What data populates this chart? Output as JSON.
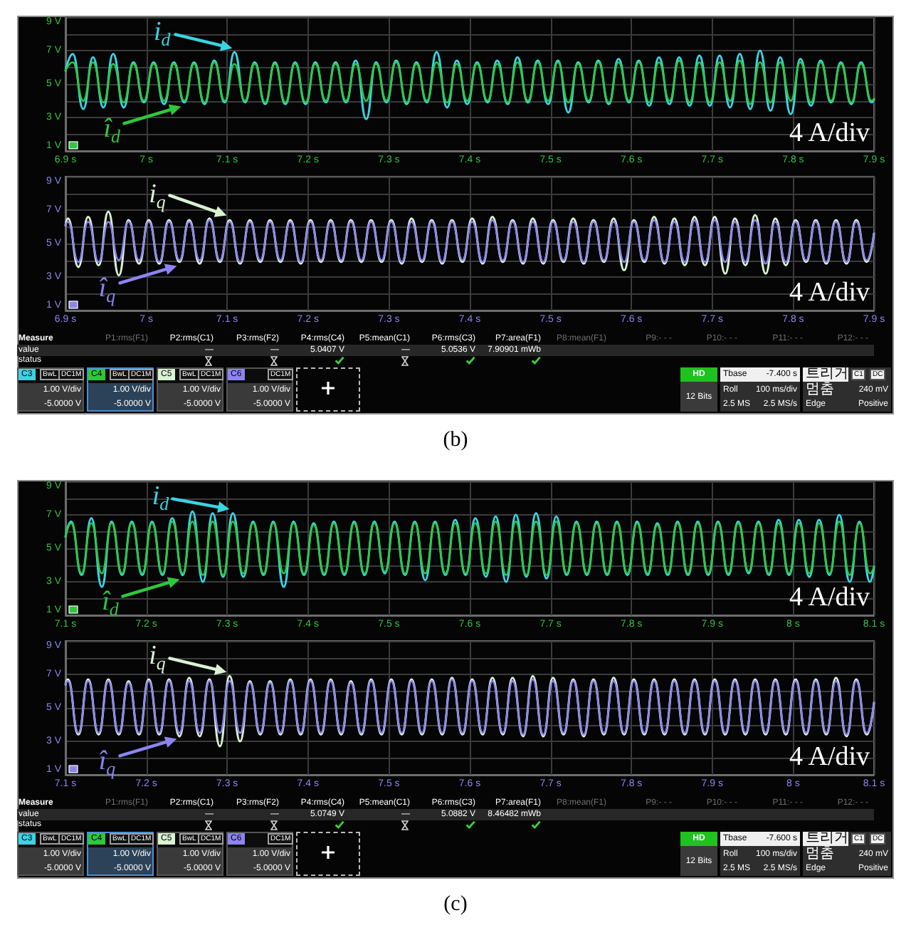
{
  "chart_data": [
    {
      "type": "line",
      "x": [
        6.9,
        6.909,
        6.922,
        6.934,
        6.947,
        6.959,
        6.972,
        6.984,
        6.997,
        7.009,
        7.022,
        7.034,
        7.047,
        7.059,
        7.072,
        7.084,
        7.097,
        7.109,
        7.122,
        7.134,
        7.147,
        7.159,
        7.172,
        7.184,
        7.197,
        7.209,
        7.222,
        7.234,
        7.247,
        7.259,
        7.272,
        7.284,
        7.297,
        7.309,
        7.322,
        7.334,
        7.347,
        7.359,
        7.372,
        7.384,
        7.397,
        7.409,
        7.422,
        7.434,
        7.447,
        7.459,
        7.472,
        7.484,
        7.497,
        7.509,
        7.522,
        7.534,
        7.547,
        7.559,
        7.572,
        7.584,
        7.597,
        7.609,
        7.622,
        7.634,
        7.647,
        7.659,
        7.672,
        7.684,
        7.697,
        7.709,
        7.722,
        7.734,
        7.747,
        7.759,
        7.772,
        7.784,
        7.797,
        7.809,
        7.822,
        7.834,
        7.847,
        7.859,
        7.872,
        7.884,
        7.897,
        7.9
      ],
      "series": [
        {
          "name": "i$_{d}$",
          "color": "#3ad4e4",
          "values": [
            5.8,
            6.8,
            3.5,
            6.6,
            3.6,
            6.8,
            3.6,
            6.3,
            3.9,
            6.3,
            3.8,
            6.3,
            3.9,
            6.3,
            3.8,
            6.4,
            3.9,
            6.9,
            3.9,
            6.3,
            3.8,
            6.3,
            3.8,
            6.3,
            3.8,
            6.3,
            3.9,
            6.3,
            3.9,
            6.4,
            2.9,
            6.3,
            3.9,
            6.4,
            3.8,
            6.3,
            3.9,
            6.9,
            3.6,
            6.4,
            3.8,
            6.3,
            3.9,
            6.4,
            3.8,
            6.6,
            3.9,
            6.4,
            3.8,
            6.4,
            3.3,
            6.3,
            3.9,
            6.4,
            3.8,
            6.5,
            3.9,
            6.4,
            3.7,
            6.6,
            3.8,
            6.6,
            3.7,
            6.7,
            3.7,
            6.7,
            3.6,
            6.8,
            3.5,
            7.0,
            3.4,
            6.6,
            3.2,
            6.5,
            3.7,
            6.4,
            3.9,
            6.3,
            3.8,
            6.3,
            3.9,
            4.1
          ]
        },
        {
          "name": "î$_{d}$",
          "color": "#2ec83c",
          "values": [
            5.8,
            6.3,
            4.0,
            6.3,
            3.9,
            6.2,
            3.9,
            6.2,
            4.0,
            6.2,
            4.0,
            6.2,
            4.0,
            6.2,
            3.9,
            6.3,
            4.0,
            6.2,
            4.0,
            6.2,
            3.9,
            6.2,
            3.9,
            6.2,
            3.9,
            6.2,
            4.0,
            6.2,
            4.0,
            6.2,
            4.0,
            6.2,
            4.0,
            6.3,
            3.9,
            6.2,
            4.0,
            6.3,
            3.9,
            6.2,
            4.0,
            6.2,
            4.0,
            6.2,
            3.9,
            6.3,
            4.0,
            6.3,
            4.0,
            6.3,
            3.9,
            6.2,
            4.0,
            6.3,
            3.9,
            6.3,
            4.0,
            6.3,
            3.9,
            6.3,
            4.0,
            6.4,
            3.9,
            6.3,
            3.9,
            6.3,
            4.0,
            6.4,
            3.8,
            6.3,
            3.9,
            6.3,
            4.0,
            6.3,
            3.9,
            6.3,
            4.0,
            6.2,
            3.9,
            6.2,
            4.0,
            4.1
          ]
        }
      ],
      "xlim": [
        6.9,
        7.9
      ],
      "xticks": [
        {
          "value": 6.9,
          "label": "6.9 s"
        },
        {
          "value": 7,
          "label": "7 s"
        },
        {
          "value": 7.1,
          "label": "7.1 s"
        },
        {
          "value": 7.2,
          "label": "7.2 s"
        },
        {
          "value": 7.3,
          "label": "7.3 s"
        },
        {
          "value": 7.4,
          "label": "7.4 s"
        },
        {
          "value": 7.5,
          "label": "7.5 s"
        },
        {
          "value": 7.6,
          "label": "7.6 s"
        },
        {
          "value": 7.7,
          "label": "7.7 s"
        },
        {
          "value": 7.8,
          "label": "7.8 s"
        },
        {
          "value": 7.9,
          "label": "7.9 s"
        }
      ],
      "ylim": [
        1,
        9
      ],
      "yticks": [
        {
          "value": 1,
          "label": "1 V"
        },
        {
          "value": 2,
          "label": null
        },
        {
          "value": 3,
          "label": "3 V"
        },
        {
          "value": 4,
          "label": null
        },
        {
          "value": 5,
          "label": "5 V"
        },
        {
          "value": 6,
          "label": null
        },
        {
          "value": 7,
          "label": "7 V"
        },
        {
          "value": 8,
          "label": null
        },
        {
          "value": 9,
          "label": "9 V"
        }
      ],
      "grid": true,
      "legend": "left",
      "marker": "none",
      "line_style": "solid",
      "annotations": [
        "4 A/div"
      ]
    },
    {
      "type": "line",
      "x": [
        6.9,
        6.903,
        6.916,
        6.928,
        6.941,
        6.953,
        6.966,
        6.978,
        6.991,
        7.003,
        7.016,
        7.028,
        7.041,
        7.053,
        7.066,
        7.078,
        7.091,
        7.103,
        7.116,
        7.128,
        7.141,
        7.153,
        7.166,
        7.178,
        7.191,
        7.203,
        7.216,
        7.228,
        7.241,
        7.253,
        7.266,
        7.278,
        7.291,
        7.303,
        7.316,
        7.328,
        7.341,
        7.353,
        7.366,
        7.378,
        7.391,
        7.403,
        7.416,
        7.428,
        7.441,
        7.453,
        7.466,
        7.478,
        7.491,
        7.503,
        7.516,
        7.528,
        7.541,
        7.553,
        7.566,
        7.578,
        7.591,
        7.603,
        7.616,
        7.628,
        7.641,
        7.653,
        7.666,
        7.678,
        7.691,
        7.703,
        7.716,
        7.728,
        7.741,
        7.753,
        7.766,
        7.778,
        7.791,
        7.803,
        7.816,
        7.828,
        7.841,
        7.853,
        7.866,
        7.878,
        7.891,
        7.9
      ],
      "series": [
        {
          "name": "i$_{q}$",
          "color": "#d8f2d2",
          "values": [
            6.1,
            6.5,
            3.6,
            6.6,
            3.7,
            6.9,
            3.1,
            6.4,
            3.8,
            6.4,
            3.8,
            6.4,
            3.9,
            6.4,
            3.8,
            6.5,
            3.9,
            6.4,
            3.8,
            6.4,
            3.9,
            6.4,
            3.9,
            6.4,
            3.8,
            6.4,
            3.9,
            6.4,
            3.9,
            6.4,
            3.9,
            6.4,
            3.9,
            6.4,
            3.8,
            6.5,
            3.9,
            6.4,
            3.8,
            6.4,
            3.9,
            6.5,
            3.8,
            6.6,
            3.9,
            6.4,
            3.8,
            6.5,
            3.8,
            6.4,
            3.9,
            6.5,
            3.8,
            6.4,
            3.9,
            6.5,
            3.4,
            6.4,
            3.9,
            6.6,
            3.8,
            6.5,
            3.7,
            6.6,
            3.7,
            6.6,
            3.2,
            6.5,
            3.7,
            6.7,
            3.2,
            6.5,
            3.7,
            6.4,
            3.9,
            6.4,
            3.8,
            6.4,
            3.8,
            6.4,
            3.9,
            5.6
          ]
        },
        {
          "name": "î$_{q}$",
          "color": "#8d84f2",
          "values": [
            6.1,
            6.3,
            3.9,
            6.3,
            3.9,
            6.3,
            4.0,
            6.3,
            4.0,
            6.3,
            3.9,
            6.3,
            4.0,
            6.3,
            4.0,
            6.4,
            4.0,
            6.3,
            3.9,
            6.3,
            4.0,
            6.3,
            4.0,
            6.3,
            3.9,
            6.3,
            4.0,
            6.3,
            4.0,
            6.3,
            4.0,
            6.3,
            4.0,
            6.3,
            3.9,
            6.3,
            4.0,
            6.3,
            3.9,
            6.3,
            4.0,
            6.3,
            3.9,
            6.4,
            4.0,
            6.3,
            3.9,
            6.3,
            3.9,
            6.3,
            4.0,
            6.3,
            3.9,
            6.3,
            4.0,
            6.3,
            3.9,
            6.3,
            4.0,
            6.4,
            3.9,
            6.3,
            3.9,
            6.4,
            3.9,
            6.4,
            3.9,
            6.3,
            3.9,
            6.4,
            3.8,
            6.3,
            3.9,
            6.3,
            4.0,
            6.3,
            3.9,
            6.3,
            3.9,
            6.3,
            4.0,
            5.6
          ]
        }
      ],
      "xlim": [
        6.9,
        7.9
      ],
      "xticks": [
        {
          "value": 6.9,
          "label": "6.9 s"
        },
        {
          "value": 7,
          "label": "7 s"
        },
        {
          "value": 7.1,
          "label": "7.1 s"
        },
        {
          "value": 7.2,
          "label": "7.2 s"
        },
        {
          "value": 7.3,
          "label": "7.3 s"
        },
        {
          "value": 7.4,
          "label": "7.4 s"
        },
        {
          "value": 7.5,
          "label": "7.5 s"
        },
        {
          "value": 7.6,
          "label": "7.6 s"
        },
        {
          "value": 7.7,
          "label": "7.7 s"
        },
        {
          "value": 7.8,
          "label": "7.8 s"
        },
        {
          "value": 7.9,
          "label": "7.9 s"
        }
      ],
      "ylim": [
        1,
        9
      ],
      "yticks": [
        {
          "value": 1,
          "label": "1 V"
        },
        {
          "value": 2,
          "label": null
        },
        {
          "value": 3,
          "label": "3 V"
        },
        {
          "value": 4,
          "label": null
        },
        {
          "value": 5,
          "label": "5 V"
        },
        {
          "value": 6,
          "label": null
        },
        {
          "value": 7,
          "label": "7 V"
        },
        {
          "value": 8,
          "label": null
        },
        {
          "value": 9,
          "label": "9 V"
        }
      ],
      "grid": true,
      "legend": "left",
      "marker": "none",
      "line_style": "solid",
      "annotations": [
        "4 A/div"
      ]
    },
    {
      "type": "other",
      "annotations": [
        "Measure",
        "P1:rms(F1)",
        "P2:rms(C1)",
        "P3:rms(F2)",
        "P4:rms(C4)",
        "P5:mean(C1)",
        "P6:rms(C3)",
        "P7:area(F1)",
        "P8:mean(F1)",
        "P9:- - -",
        "P10:- - -",
        "P11:- - -",
        "P12:- - -",
        "value",
        "status",
        "—",
        "—",
        "5.0407 V",
        "—",
        "5.0536 V",
        "7.90901 mWb",
        "C3",
        "BwL",
        "DC1M",
        "1.00 V/div",
        "-5.0000 V",
        "C4",
        "BwL",
        "DC1M",
        "1.00 V/div",
        "-5.0000 V",
        "C5",
        "BwL",
        "DC1M",
        "1.00 V/div",
        "-5.0000 V",
        "C6",
        "DC1M",
        "1.00 V/div",
        "-5.0000 V",
        "HD",
        "12 Bits",
        "Tbase",
        "-7.400 s",
        "Roll",
        "100 ms/div",
        "2.5 MS",
        "2.5 MS/s",
        "트리거",
        "C1",
        "DC",
        "멈춤",
        "240 mV",
        "Edge",
        "Positive",
        "(b)"
      ]
    },
    {
      "type": "line",
      "x": [
        7.1,
        7.107,
        7.12,
        7.132,
        7.145,
        7.157,
        7.17,
        7.182,
        7.195,
        7.207,
        7.22,
        7.232,
        7.245,
        7.257,
        7.27,
        7.282,
        7.295,
        7.307,
        7.32,
        7.332,
        7.345,
        7.357,
        7.37,
        7.382,
        7.395,
        7.407,
        7.42,
        7.432,
        7.445,
        7.457,
        7.47,
        7.482,
        7.495,
        7.507,
        7.52,
        7.532,
        7.545,
        7.557,
        7.57,
        7.582,
        7.595,
        7.607,
        7.62,
        7.632,
        7.645,
        7.657,
        7.67,
        7.682,
        7.695,
        7.707,
        7.72,
        7.732,
        7.745,
        7.757,
        7.77,
        7.782,
        7.795,
        7.807,
        7.82,
        7.832,
        7.845,
        7.857,
        7.87,
        7.882,
        7.895,
        7.907,
        7.92,
        7.932,
        7.945,
        7.957,
        7.97,
        7.982,
        7.995,
        8.007,
        8.02,
        8.032,
        8.045,
        8.057,
        8.07,
        8.082,
        8.095,
        8.1
      ],
      "series": [
        {
          "name": "i$_{d}$",
          "color": "#3ad4e4",
          "values": [
            5.7,
            6.6,
            3.4,
            6.8,
            2.7,
            6.6,
            3.4,
            6.6,
            3.4,
            6.6,
            3.4,
            6.8,
            3.4,
            7.2,
            3.0,
            7.1,
            3.3,
            7.1,
            3.3,
            6.6,
            3.4,
            6.6,
            2.7,
            6.6,
            3.4,
            6.5,
            3.4,
            6.6,
            3.4,
            6.6,
            3.4,
            6.6,
            3.5,
            6.6,
            3.4,
            6.6,
            3.1,
            6.6,
            3.4,
            6.7,
            3.4,
            6.8,
            3.3,
            6.9,
            3.0,
            7.0,
            3.3,
            7.1,
            3.2,
            6.9,
            3.4,
            6.6,
            3.4,
            6.6,
            3.4,
            6.6,
            3.4,
            6.6,
            3.4,
            6.5,
            3.4,
            6.6,
            3.4,
            6.6,
            3.4,
            6.6,
            3.4,
            6.6,
            3.5,
            6.6,
            3.4,
            6.7,
            3.4,
            6.7,
            3.3,
            6.7,
            3.4,
            7.0,
            3.0,
            6.6,
            3.0,
            3.9
          ]
        },
        {
          "name": "î$_{d}$",
          "color": "#2ec83c",
          "values": [
            5.7,
            6.5,
            3.5,
            6.5,
            3.5,
            6.5,
            3.5,
            6.5,
            3.5,
            6.5,
            3.5,
            6.6,
            3.5,
            6.6,
            3.4,
            6.6,
            3.4,
            6.6,
            3.5,
            6.5,
            3.5,
            6.5,
            3.5,
            6.5,
            3.5,
            6.4,
            3.5,
            6.5,
            3.5,
            6.5,
            3.5,
            6.5,
            3.6,
            6.5,
            3.5,
            6.5,
            3.5,
            6.5,
            3.5,
            6.5,
            3.5,
            6.5,
            3.5,
            6.6,
            3.4,
            6.6,
            3.4,
            6.6,
            3.4,
            6.6,
            3.5,
            6.5,
            3.5,
            6.5,
            3.5,
            6.5,
            3.5,
            6.5,
            3.5,
            6.4,
            3.5,
            6.5,
            3.5,
            6.5,
            3.5,
            6.5,
            3.5,
            6.5,
            3.6,
            6.5,
            3.5,
            6.5,
            3.5,
            6.5,
            3.5,
            6.5,
            3.5,
            6.6,
            3.4,
            6.5,
            3.5,
            3.9
          ]
        }
      ],
      "xlim": [
        7.1,
        8.1
      ],
      "xticks": [
        {
          "value": 7.1,
          "label": "7.1 s"
        },
        {
          "value": 7.2,
          "label": "7.2 s"
        },
        {
          "value": 7.3,
          "label": "7.3 s"
        },
        {
          "value": 7.4,
          "label": "7.4 s"
        },
        {
          "value": 7.5,
          "label": "7.5 s"
        },
        {
          "value": 7.6,
          "label": "7.6 s"
        },
        {
          "value": 7.7,
          "label": "7.7 s"
        },
        {
          "value": 7.8,
          "label": "7.8 s"
        },
        {
          "value": 7.9,
          "label": "7.9 s"
        },
        {
          "value": 8,
          "label": "8 s"
        },
        {
          "value": 8.1,
          "label": "8.1 s"
        }
      ],
      "ylim": [
        1,
        9
      ],
      "yticks": [
        {
          "value": 1,
          "label": "1 V"
        },
        {
          "value": 2,
          "label": null
        },
        {
          "value": 3,
          "label": "3 V"
        },
        {
          "value": 4,
          "label": null
        },
        {
          "value": 5,
          "label": "5 V"
        },
        {
          "value": 6,
          "label": null
        },
        {
          "value": 7,
          "label": "7 V"
        },
        {
          "value": 8,
          "label": null
        },
        {
          "value": 9,
          "label": "9 V"
        }
      ],
      "grid": true,
      "legend": "left",
      "marker": "none",
      "line_style": "solid",
      "annotations": [
        "4 A/div"
      ]
    },
    {
      "type": "line",
      "x": [
        7.1,
        7.103,
        7.116,
        7.128,
        7.141,
        7.153,
        7.166,
        7.178,
        7.191,
        7.203,
        7.216,
        7.228,
        7.241,
        7.253,
        7.266,
        7.278,
        7.291,
        7.303,
        7.316,
        7.328,
        7.341,
        7.353,
        7.366,
        7.378,
        7.391,
        7.403,
        7.416,
        7.428,
        7.441,
        7.453,
        7.466,
        7.478,
        7.491,
        7.503,
        7.516,
        7.528,
        7.541,
        7.553,
        7.566,
        7.578,
        7.591,
        7.603,
        7.616,
        7.628,
        7.641,
        7.653,
        7.666,
        7.678,
        7.691,
        7.703,
        7.716,
        7.728,
        7.741,
        7.753,
        7.766,
        7.778,
        7.791,
        7.803,
        7.816,
        7.828,
        7.841,
        7.853,
        7.866,
        7.878,
        7.891,
        7.903,
        7.916,
        7.928,
        7.941,
        7.953,
        7.966,
        7.978,
        7.991,
        8.003,
        8.016,
        8.028,
        8.041,
        8.053,
        8.066,
        8.078,
        8.091,
        8.1
      ],
      "series": [
        {
          "name": "i$_{q}$",
          "color": "#d8f2d2",
          "values": [
            6.4,
            6.7,
            3.4,
            6.7,
            3.4,
            6.7,
            3.4,
            6.6,
            3.4,
            6.7,
            3.4,
            6.7,
            3.3,
            6.8,
            3.3,
            6.7,
            2.7,
            6.9,
            3.0,
            6.6,
            3.4,
            6.6,
            3.4,
            6.7,
            3.4,
            6.7,
            3.4,
            6.7,
            3.4,
            6.6,
            3.4,
            6.7,
            3.4,
            6.7,
            3.4,
            6.7,
            3.4,
            6.7,
            3.4,
            6.8,
            3.4,
            6.7,
            3.4,
            6.8,
            3.4,
            6.8,
            3.3,
            6.9,
            3.3,
            6.8,
            3.4,
            6.7,
            3.3,
            6.7,
            3.4,
            6.8,
            3.4,
            6.7,
            3.4,
            6.7,
            3.4,
            6.7,
            3.4,
            6.7,
            3.4,
            6.7,
            3.4,
            6.7,
            3.4,
            6.7,
            3.4,
            6.7,
            3.4,
            6.7,
            3.4,
            6.7,
            3.4,
            6.8,
            3.3,
            6.7,
            3.4,
            5.3
          ]
        },
        {
          "name": "î$_{q}$",
          "color": "#8d84f2",
          "values": [
            6.4,
            6.6,
            3.5,
            6.6,
            3.5,
            6.6,
            3.5,
            6.5,
            3.5,
            6.6,
            3.5,
            6.6,
            3.5,
            6.6,
            3.5,
            6.6,
            3.5,
            6.6,
            3.5,
            6.5,
            3.5,
            6.5,
            3.5,
            6.6,
            3.5,
            6.6,
            3.5,
            6.6,
            3.5,
            6.5,
            3.5,
            6.6,
            3.5,
            6.6,
            3.5,
            6.6,
            3.5,
            6.6,
            3.5,
            6.7,
            3.5,
            6.6,
            3.5,
            6.6,
            3.5,
            6.6,
            3.4,
            6.7,
            3.4,
            6.6,
            3.5,
            6.6,
            3.4,
            6.6,
            3.5,
            6.6,
            3.5,
            6.6,
            3.5,
            6.6,
            3.5,
            6.6,
            3.5,
            6.6,
            3.5,
            6.6,
            3.5,
            6.6,
            3.5,
            6.6,
            3.5,
            6.6,
            3.5,
            6.6,
            3.5,
            6.6,
            3.5,
            6.6,
            3.4,
            6.6,
            3.5,
            5.3
          ]
        }
      ],
      "xlim": [
        7.1,
        8.1
      ],
      "xticks": [
        {
          "value": 7.1,
          "label": "7.1 s"
        },
        {
          "value": 7.2,
          "label": "7.2 s"
        },
        {
          "value": 7.3,
          "label": "7.3 s"
        },
        {
          "value": 7.4,
          "label": "7.4 s"
        },
        {
          "value": 7.5,
          "label": "7.5 s"
        },
        {
          "value": 7.6,
          "label": "7.6 s"
        },
        {
          "value": 7.7,
          "label": "7.7 s"
        },
        {
          "value": 7.8,
          "label": "7.8 s"
        },
        {
          "value": 7.9,
          "label": "7.9 s"
        },
        {
          "value": 8,
          "label": "8 s"
        },
        {
          "value": 8.1,
          "label": "8.1 s"
        }
      ],
      "ylim": [
        1,
        9
      ],
      "yticks": [
        {
          "value": 1,
          "label": "1 V"
        },
        {
          "value": 2,
          "label": null
        },
        {
          "value": 3,
          "label": "3 V"
        },
        {
          "value": 4,
          "label": null
        },
        {
          "value": 5,
          "label": "5 V"
        },
        {
          "value": 6,
          "label": null
        },
        {
          "value": 7,
          "label": "7 V"
        },
        {
          "value": 8,
          "label": null
        },
        {
          "value": 9,
          "label": "9 V"
        }
      ],
      "grid": true,
      "legend": "left",
      "marker": "none",
      "line_style": "solid",
      "annotations": [
        "4 A/div"
      ]
    },
    {
      "type": "other",
      "annotations": [
        "Measure",
        "P1:rms(F1)",
        "P2:rms(C1)",
        "P3:rms(F2)",
        "P4:rms(C4)",
        "P5:mean(C1)",
        "P6:rms(C3)",
        "P7:area(F1)",
        "P8:mean(F1)",
        "P9:- - -",
        "P10:- - -",
        "P11:- - -",
        "P12:- - -",
        "value",
        "status",
        "—",
        "—",
        "5.0749 V",
        "—",
        "5.0882 V",
        "8.46482 mWb",
        "C3",
        "BwL",
        "DC1M",
        "1.00 V/div",
        "-5.0000 V",
        "C4",
        "BwL",
        "DC1M",
        "1.00 V/div",
        "-5.0000 V",
        "C5",
        "BwL",
        "DC1M",
        "1.00 V/div",
        "-5.0000 V",
        "C6",
        "DC1M",
        "1.00 V/div",
        "-5.0000 V",
        "HD",
        "12 Bits",
        "Tbase",
        "-7.600 s",
        "Roll",
        "100 ms/div",
        "2.5 MS",
        "2.5 MS/s",
        "트리거",
        "C1",
        "DC",
        "멈춤",
        "240 mV",
        "Edge",
        "Positive",
        "(c)"
      ]
    }
  ]
}
